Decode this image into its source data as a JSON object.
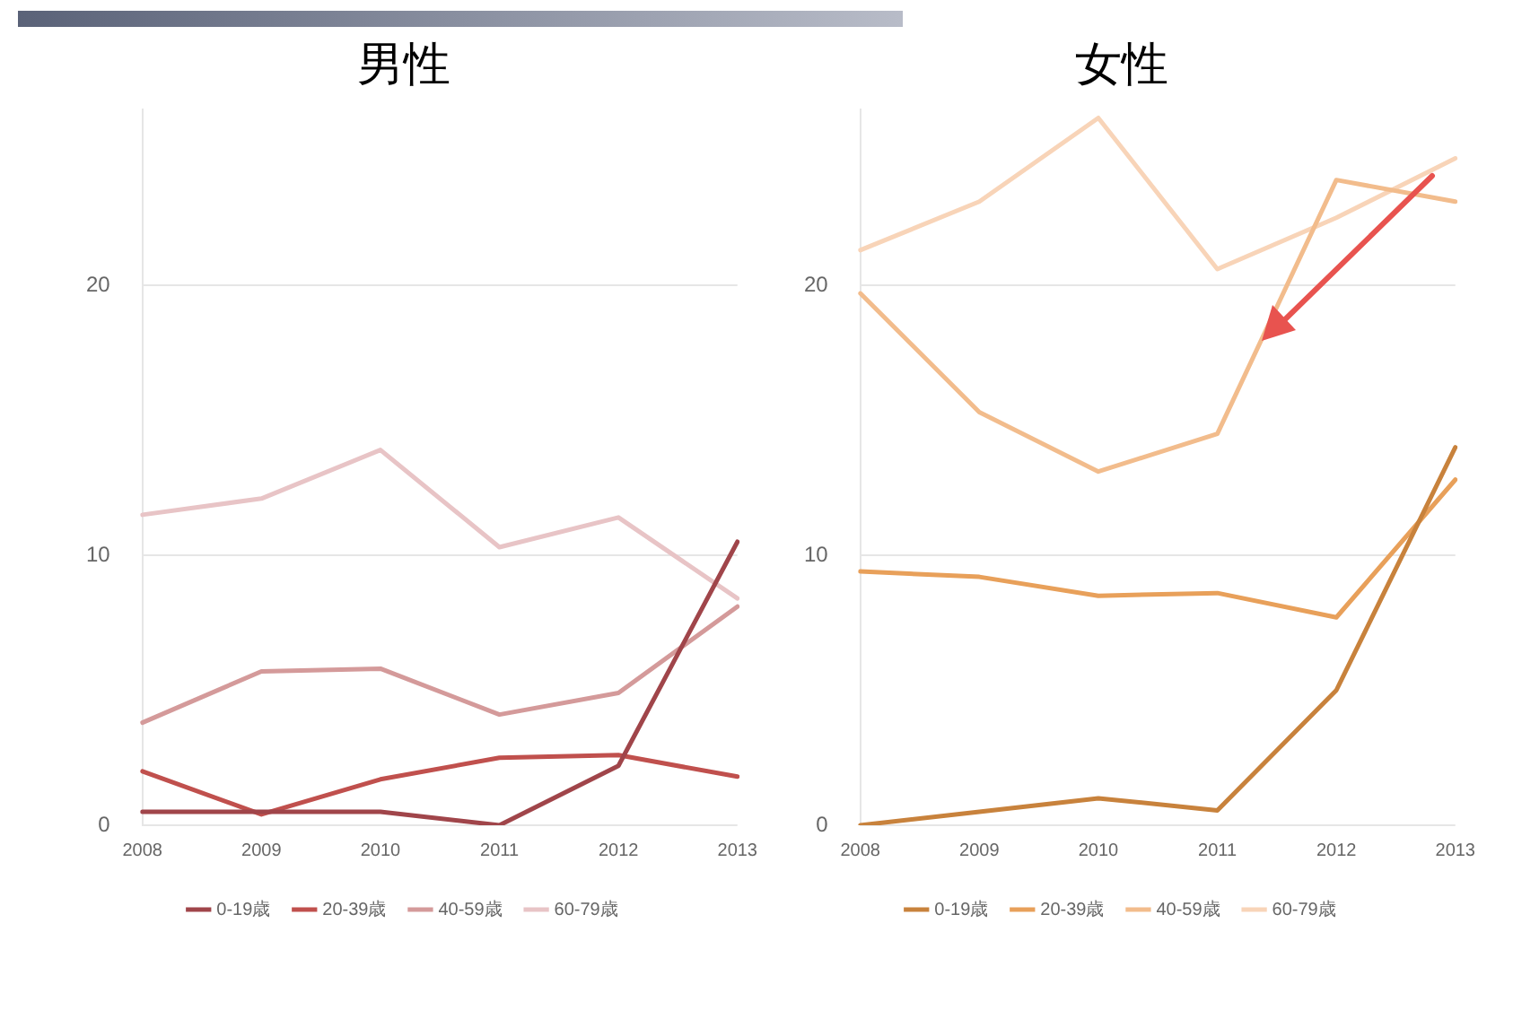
{
  "chart_data": [
    {
      "type": "line",
      "title": "男性",
      "categories": [
        "2008",
        "2009",
        "2010",
        "2011",
        "2012",
        "2013"
      ],
      "ylim": [
        0,
        26.5
      ],
      "yticks": [
        0,
        10,
        20
      ],
      "grid": "y",
      "legend": "bottom",
      "marker": "none",
      "series": [
        {
          "name": "0-19歳",
          "color": "#a0454a",
          "values": [
            0.5,
            0.5,
            0.5,
            0,
            2.2,
            10.5
          ]
        },
        {
          "name": "20-39歳",
          "color": "#c0504d",
          "values": [
            2.0,
            0.4,
            1.7,
            2.5,
            2.6,
            1.8
          ]
        },
        {
          "name": "40-59歳",
          "color": "#d49a9a",
          "values": [
            3.8,
            5.7,
            5.8,
            4.1,
            4.9,
            8.1
          ]
        },
        {
          "name": "60-79歳",
          "color": "#e8c4c6",
          "values": [
            11.5,
            12.1,
            13.9,
            10.3,
            11.4,
            8.4
          ]
        }
      ]
    },
    {
      "type": "line",
      "title": "女性",
      "categories": [
        "2008",
        "2009",
        "2010",
        "2011",
        "2012",
        "2013"
      ],
      "ylim": [
        0,
        26.5
      ],
      "yticks": [
        0,
        10,
        20
      ],
      "grid": "y",
      "legend": "bottom",
      "marker": "none",
      "series": [
        {
          "name": "0-19歳",
          "color": "#c8823c",
          "values": [
            0,
            0.5,
            1.0,
            0.55,
            5.0,
            14.0
          ]
        },
        {
          "name": "20-39歳",
          "color": "#e8a05a",
          "values": [
            9.4,
            9.2,
            8.5,
            8.6,
            7.7,
            12.8
          ]
        },
        {
          "name": "40-59歳",
          "color": "#f2bc8c",
          "values": [
            19.7,
            15.3,
            13.1,
            14.5,
            23.9,
            23.1
          ]
        },
        {
          "name": "60-79歳",
          "color": "#f8d4b8",
          "values": [
            21.3,
            23.1,
            26.2,
            20.6,
            22.5,
            24.7
          ]
        }
      ]
    }
  ]
}
